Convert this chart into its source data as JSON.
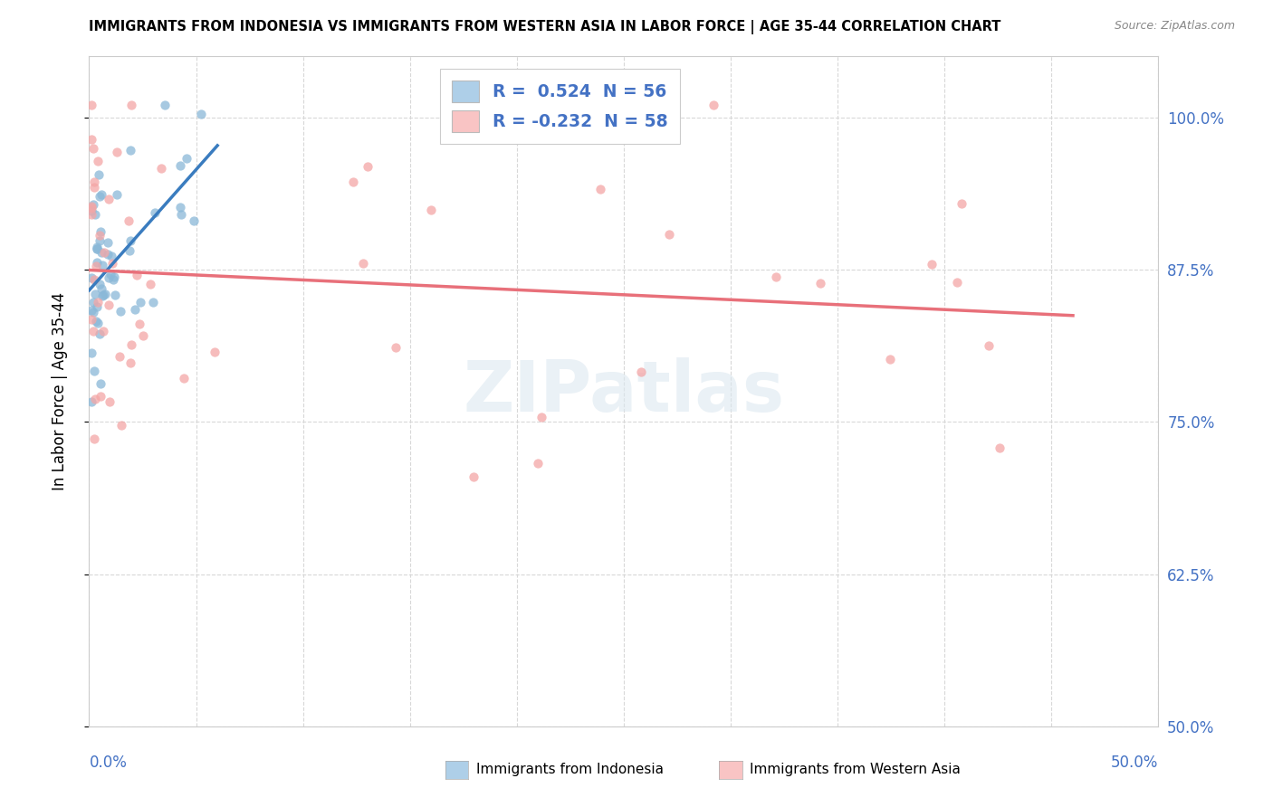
{
  "title": "IMMIGRANTS FROM INDONESIA VS IMMIGRANTS FROM WESTERN ASIA IN LABOR FORCE | AGE 35-44 CORRELATION CHART",
  "source_text": "Source: ZipAtlas.com",
  "ylabel": "In Labor Force | Age 35-44",
  "r_indonesia": 0.524,
  "n_indonesia": 56,
  "r_western_asia": -0.232,
  "n_western_asia": 58,
  "color_indonesia_scatter": "#8ab8d8",
  "color_indonesia_line": "#3a7cbf",
  "color_western_asia_scatter": "#f4a6a6",
  "color_western_asia_line": "#e8707a",
  "color_legend_indonesia": "#aecfe8",
  "color_legend_western_asia": "#f9c4c4",
  "label_color": "#4472c4",
  "grid_color": "#d8d8d8",
  "ytick_labels": [
    "100.0%",
    "87.5%",
    "75.0%",
    "62.5%",
    "50.0%"
  ],
  "ytick_values": [
    1.0,
    0.875,
    0.75,
    0.625,
    0.5
  ],
  "xlim": [
    0.0,
    0.5
  ],
  "ylim": [
    0.5,
    1.05
  ],
  "xtick_left_label": "0.0%",
  "xtick_right_label": "50.0%",
  "legend_bottom_indonesia": "Immigrants from Indonesia",
  "legend_bottom_western_asia": "Immigrants from Western Asia",
  "watermark": "ZIPatlas",
  "figsize": [
    14.06,
    8.92
  ],
  "dpi": 100
}
